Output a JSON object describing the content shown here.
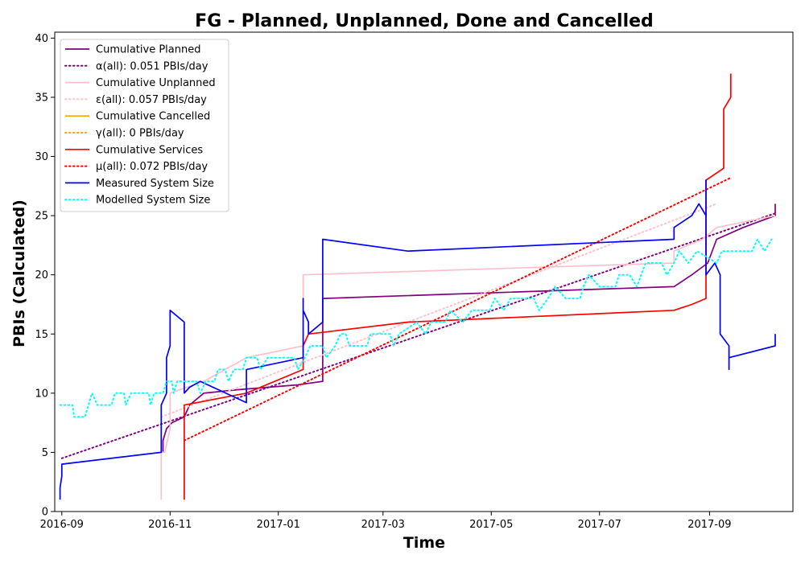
{
  "chart_data": {
    "type": "line",
    "title": "FG - Planned, Unplanned, Done  and Cancelled",
    "xlabel": "Time",
    "ylabel": "PBIs (Calculated)",
    "xlim": [
      "2016-08-28",
      "2017-10-18"
    ],
    "ylim": [
      0,
      40.5
    ],
    "x_ticks": [
      "2016-09",
      "2016-11",
      "2017-01",
      "2017-03",
      "2017-05",
      "2017-07",
      "2017-09"
    ],
    "y_ticks": [
      0,
      5,
      10,
      15,
      20,
      25,
      30,
      35,
      40
    ],
    "grid": false,
    "legend_position": "top-left",
    "series": [
      {
        "name": "Cumulative Planned",
        "color": "#800080",
        "style": "solid",
        "points": [
          [
            "2016-10-28",
            5
          ],
          [
            "2016-10-28",
            6
          ],
          [
            "2016-10-30",
            7
          ],
          [
            "2016-11-02",
            7.5
          ],
          [
            "2016-11-09",
            8
          ],
          [
            "2016-11-12",
            9
          ],
          [
            "2016-11-20",
            10
          ],
          [
            "2016-12-10",
            10.3
          ],
          [
            "2017-01-12",
            10.7
          ],
          [
            "2017-01-26",
            11
          ],
          [
            "2017-01-26",
            18
          ],
          [
            "2017-08-12",
            19
          ],
          [
            "2017-08-22",
            20
          ],
          [
            "2017-08-31",
            21
          ],
          [
            "2017-09-05",
            23
          ],
          [
            "2017-09-20",
            24
          ],
          [
            "2017-10-08",
            25
          ],
          [
            "2017-10-08",
            26
          ]
        ]
      },
      {
        "name": "α(all): 0.051 PBIs/day",
        "color": "#800080",
        "style": "dotted",
        "points": [
          [
            "2016-09-01",
            4.5
          ],
          [
            "2017-10-08",
            25.2
          ]
        ]
      },
      {
        "name": "Cumulative Unplanned",
        "color": "#ffc0cb",
        "style": "solid",
        "points": [
          [
            "2016-10-27",
            1
          ],
          [
            "2016-10-27",
            5
          ],
          [
            "2016-10-29",
            5
          ],
          [
            "2016-11-01",
            7
          ],
          [
            "2016-11-01",
            10
          ],
          [
            "2016-11-20",
            11
          ],
          [
            "2016-12-14",
            13
          ],
          [
            "2017-01-15",
            14
          ],
          [
            "2017-01-15",
            20
          ],
          [
            "2017-08-12",
            21
          ],
          [
            "2017-08-12",
            22
          ],
          [
            "2017-08-28",
            23
          ],
          [
            "2017-09-05",
            24
          ],
          [
            "2017-10-08",
            25
          ]
        ]
      },
      {
        "name": "ε(all): 0.057 PBIs/day",
        "color": "#ffc0cb",
        "style": "dotted",
        "points": [
          [
            "2016-10-27",
            8
          ],
          [
            "2017-09-05",
            26
          ]
        ]
      },
      {
        "name": "Cumulative Cancelled",
        "color": "#ffa500",
        "style": "solid",
        "points": []
      },
      {
        "name": "γ(all): 0 PBIs/day",
        "color": "#ffa500",
        "style": "dotted",
        "points": []
      },
      {
        "name": "Cumulative Services",
        "color": "#ff0000",
        "style": "solid",
        "points": [
          [
            "2016-11-09",
            1
          ],
          [
            "2016-11-09",
            9
          ],
          [
            "2016-12-14",
            10
          ],
          [
            "2017-01-15",
            12
          ],
          [
            "2017-01-15",
            14
          ],
          [
            "2017-01-18",
            15
          ],
          [
            "2017-03-15",
            16
          ],
          [
            "2017-08-12",
            17
          ],
          [
            "2017-08-22",
            17.5
          ],
          [
            "2017-08-30",
            18
          ],
          [
            "2017-08-30",
            28
          ],
          [
            "2017-09-09",
            29
          ],
          [
            "2017-09-09",
            34
          ],
          [
            "2017-09-13",
            35
          ],
          [
            "2017-09-13",
            37
          ]
        ]
      },
      {
        "name": "μ(all): 0.072 PBIs/day",
        "color": "#ff0000",
        "style": "dotted",
        "points": [
          [
            "2016-11-09",
            6
          ],
          [
            "2017-09-13",
            28.2
          ]
        ]
      },
      {
        "name": "Measured System Size",
        "color": "#0000ff",
        "style": "solid",
        "points": [
          [
            "2016-08-31",
            1
          ],
          [
            "2016-08-31",
            2
          ],
          [
            "2016-09-01",
            3
          ],
          [
            "2016-09-01",
            4
          ],
          [
            "2016-10-27",
            5
          ],
          [
            "2016-10-27",
            9
          ],
          [
            "2016-10-30",
            10
          ],
          [
            "2016-10-30",
            13
          ],
          [
            "2016-11-01",
            14
          ],
          [
            "2016-11-01",
            15
          ],
          [
            "2016-11-01",
            17
          ],
          [
            "2016-11-09",
            16
          ],
          [
            "2016-11-09",
            10
          ],
          [
            "2016-11-12",
            10.5
          ],
          [
            "2016-11-18",
            11
          ],
          [
            "2016-12-14",
            9.2
          ],
          [
            "2016-12-14",
            12
          ],
          [
            "2017-01-15",
            13
          ],
          [
            "2017-01-15",
            18
          ],
          [
            "2017-01-15",
            17
          ],
          [
            "2017-01-18",
            16
          ],
          [
            "2017-01-18",
            15
          ],
          [
            "2017-01-26",
            16
          ],
          [
            "2017-01-26",
            23
          ],
          [
            "2017-03-15",
            22
          ],
          [
            "2017-08-12",
            23
          ],
          [
            "2017-08-12",
            24
          ],
          [
            "2017-08-22",
            25
          ],
          [
            "2017-08-26",
            26
          ],
          [
            "2017-08-30",
            25
          ],
          [
            "2017-08-30",
            28
          ],
          [
            "2017-08-30",
            20
          ],
          [
            "2017-09-04",
            21
          ],
          [
            "2017-09-07",
            20
          ],
          [
            "2017-09-07",
            15
          ],
          [
            "2017-09-12",
            14
          ],
          [
            "2017-09-12",
            12
          ],
          [
            "2017-09-12",
            13
          ],
          [
            "2017-10-08",
            14
          ],
          [
            "2017-10-08",
            15
          ]
        ]
      },
      {
        "name": "Modelled System Size",
        "color": "#00ffff",
        "style": "dotted",
        "points": [
          [
            "2016-08-31",
            9
          ],
          [
            "2016-09-07",
            9
          ],
          [
            "2016-09-08",
            8
          ],
          [
            "2016-09-14",
            8
          ],
          [
            "2016-09-16",
            9
          ],
          [
            "2016-09-18",
            10
          ],
          [
            "2016-09-21",
            9
          ],
          [
            "2016-09-29",
            9
          ],
          [
            "2016-10-01",
            10
          ],
          [
            "2016-10-06",
            10
          ],
          [
            "2016-10-07",
            9
          ],
          [
            "2016-10-10",
            10
          ],
          [
            "2016-10-20",
            10
          ],
          [
            "2016-10-21",
            9
          ],
          [
            "2016-10-23",
            10
          ],
          [
            "2016-10-28",
            10
          ],
          [
            "2016-10-30",
            11
          ],
          [
            "2016-11-02",
            11
          ],
          [
            "2016-11-03",
            10
          ],
          [
            "2016-11-05",
            11
          ],
          [
            "2016-11-16",
            11
          ],
          [
            "2016-11-18",
            10
          ],
          [
            "2016-11-21",
            11
          ],
          [
            "2016-11-26",
            11
          ],
          [
            "2016-11-28",
            12
          ],
          [
            "2016-12-02",
            12
          ],
          [
            "2016-12-04",
            11
          ],
          [
            "2016-12-07",
            12
          ],
          [
            "2016-12-12",
            12
          ],
          [
            "2016-12-14",
            13
          ],
          [
            "2016-12-20",
            13
          ],
          [
            "2016-12-22",
            12
          ],
          [
            "2016-12-26",
            13
          ],
          [
            "2017-01-10",
            13
          ],
          [
            "2017-01-12",
            12
          ],
          [
            "2017-01-16",
            13
          ],
          [
            "2017-01-19",
            14
          ],
          [
            "2017-01-26",
            14
          ],
          [
            "2017-01-28",
            13
          ],
          [
            "2017-02-02",
            14
          ],
          [
            "2017-02-05",
            15
          ],
          [
            "2017-02-08",
            15
          ],
          [
            "2017-02-10",
            14
          ],
          [
            "2017-02-20",
            14
          ],
          [
            "2017-02-22",
            15
          ],
          [
            "2017-03-05",
            15
          ],
          [
            "2017-03-07",
            14
          ],
          [
            "2017-03-10",
            15
          ],
          [
            "2017-03-20",
            16
          ],
          [
            "2017-03-25",
            15
          ],
          [
            "2017-03-28",
            16
          ],
          [
            "2017-04-05",
            16
          ],
          [
            "2017-04-08",
            17
          ],
          [
            "2017-04-15",
            16
          ],
          [
            "2017-04-20",
            17
          ],
          [
            "2017-04-30",
            17
          ],
          [
            "2017-05-03",
            18
          ],
          [
            "2017-05-08",
            17
          ],
          [
            "2017-05-12",
            18
          ],
          [
            "2017-05-25",
            18
          ],
          [
            "2017-05-28",
            17
          ],
          [
            "2017-06-02",
            18
          ],
          [
            "2017-06-06",
            19
          ],
          [
            "2017-06-12",
            18
          ],
          [
            "2017-06-20",
            18
          ],
          [
            "2017-06-22",
            19
          ],
          [
            "2017-06-25",
            20
          ],
          [
            "2017-07-01",
            19
          ],
          [
            "2017-07-10",
            19
          ],
          [
            "2017-07-12",
            20
          ],
          [
            "2017-07-18",
            20
          ],
          [
            "2017-07-22",
            19
          ],
          [
            "2017-07-27",
            21
          ],
          [
            "2017-08-05",
            21
          ],
          [
            "2017-08-08",
            20
          ],
          [
            "2017-08-12",
            21
          ],
          [
            "2017-08-15",
            22
          ],
          [
            "2017-08-20",
            21
          ],
          [
            "2017-08-25",
            22
          ],
          [
            "2017-09-05",
            21
          ],
          [
            "2017-09-08",
            22
          ],
          [
            "2017-09-25",
            22
          ],
          [
            "2017-09-28",
            23
          ],
          [
            "2017-10-02",
            22
          ],
          [
            "2017-10-06",
            23
          ]
        ]
      }
    ]
  }
}
